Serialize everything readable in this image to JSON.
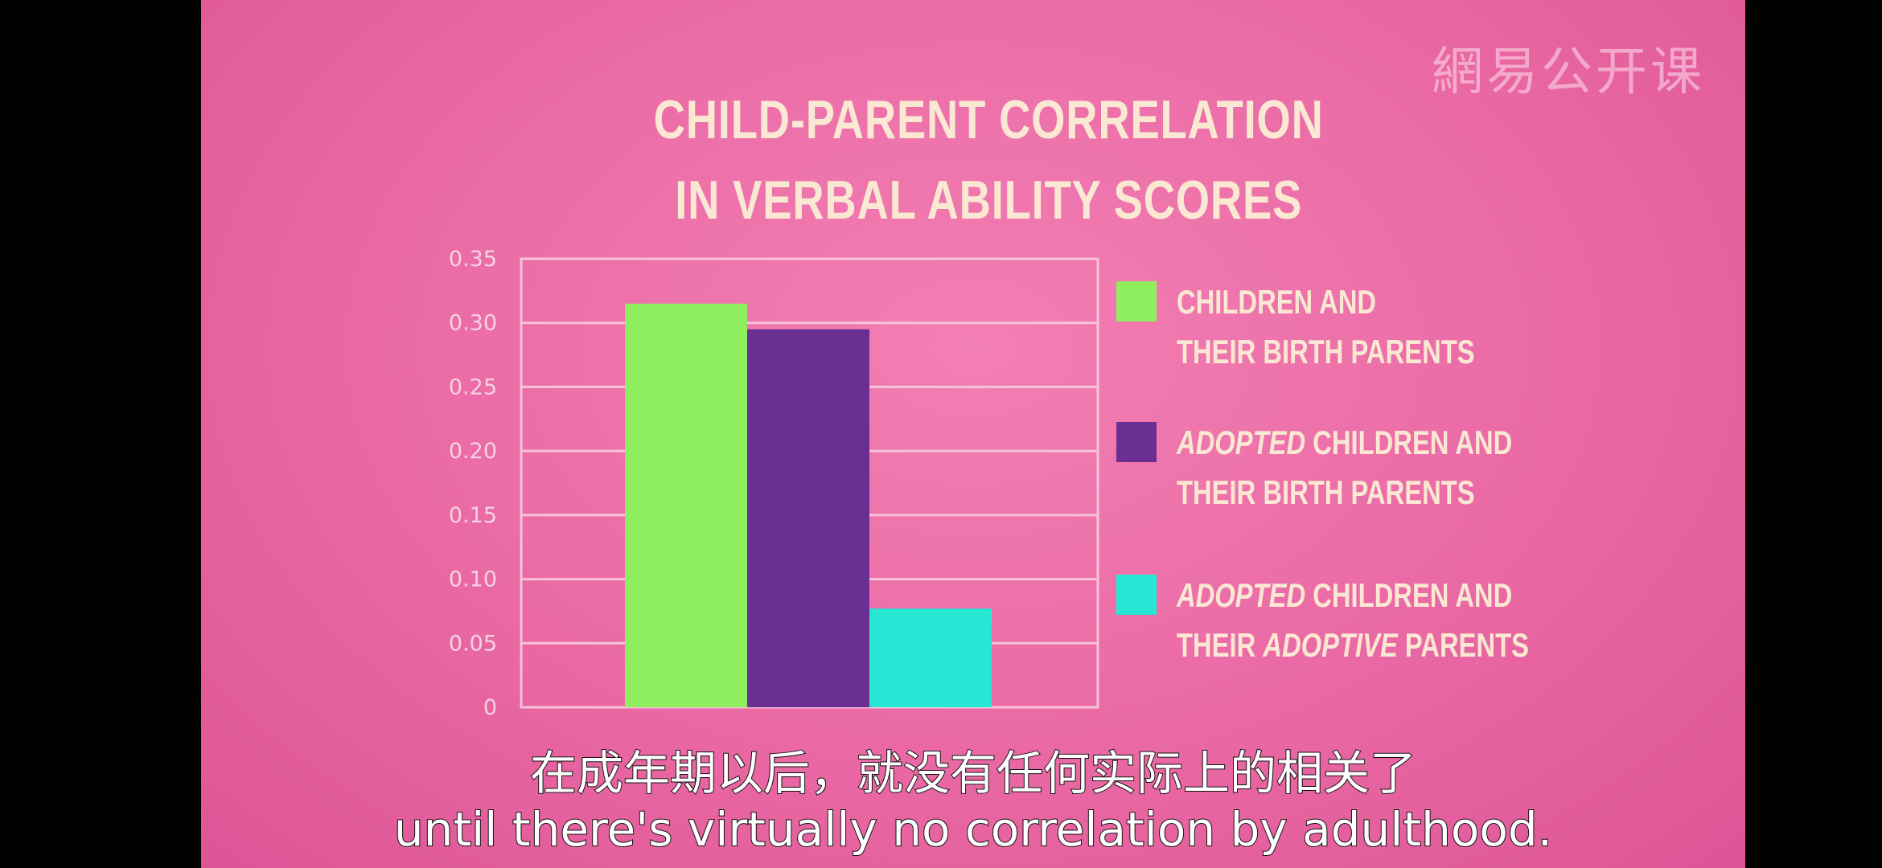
{
  "watermark": "網易公开课",
  "chart_data": {
    "type": "bar",
    "title_lines": [
      "CHILD-PARENT CORRELATION",
      "IN VERBAL ABILITY SCORES"
    ],
    "ylim": [
      0,
      0.35
    ],
    "yticks": [
      "0.35",
      "0.30",
      "0.25",
      "0.20",
      "0.15",
      "0.10",
      "0.05",
      "0"
    ],
    "ytick_values": [
      0.35,
      0.3,
      0.25,
      0.2,
      0.15,
      0.1,
      0.05,
      0
    ],
    "grid": true,
    "legend_position": "right",
    "series": [
      {
        "name_parts": [
          [
            {
              "text": "CHILDREN AND",
              "em": false
            }
          ],
          [
            {
              "text": "THEIR BIRTH PARENTS",
              "em": false
            }
          ]
        ],
        "value": 0.315,
        "color": "#8fee5e"
      },
      {
        "name_parts": [
          [
            {
              "text": "ADOPTED",
              "em": true
            },
            {
              "text": " CHILDREN AND",
              "em": false
            }
          ],
          [
            {
              "text": "THEIR BIRTH PARENTS",
              "em": false
            }
          ]
        ],
        "value": 0.295,
        "color": "#6b2e93"
      },
      {
        "name_parts": [
          [
            {
              "text": "ADOPTED",
              "em": true
            },
            {
              "text": " CHILDREN AND",
              "em": false
            }
          ],
          [
            {
              "text": "THEIR ",
              "em": false
            },
            {
              "text": "ADOPTIVE",
              "em": true
            },
            {
              "text": " PARENTS",
              "em": false
            }
          ]
        ],
        "value": 0.077,
        "color": "#26e6d4"
      }
    ]
  },
  "subtitles": {
    "zh": "在成年期以后，就没有任何实际上的相关了",
    "en": "until there's virtually no correlation by adulthood."
  },
  "colors": {
    "background": "#ea69a4",
    "gridline": "#f7c3d9",
    "title_text": "#fbe8d3"
  }
}
